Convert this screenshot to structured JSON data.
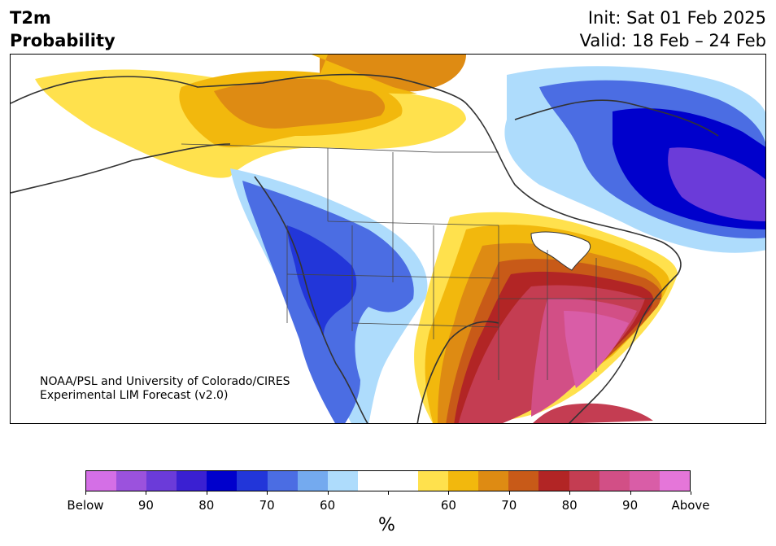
{
  "title": {
    "line1": "T2m",
    "line2": "Probability"
  },
  "header_right": {
    "init": "Init: Sat 01 Feb 2025",
    "valid": "Valid: 18 Feb – 24 Feb"
  },
  "credit": {
    "line1": "NOAA/PSL and University of Colorado/CIRES",
    "line2": "Experimental LIM Forecast (v2.0)"
  },
  "colorbar": {
    "colors": [
      "#d46fe6",
      "#9b52dd",
      "#6b3bd9",
      "#3a20d2",
      "#0000cc",
      "#2236d9",
      "#4b6de3",
      "#74aaef",
      "#aedcfc",
      "#ffffff",
      "#ffffff",
      "#ffe14d",
      "#f2b80d",
      "#de8b13",
      "#c85a18",
      "#b22525",
      "#c43d52",
      "#d24f86",
      "#d95da7",
      "#e576d9"
    ],
    "tick_labels": [
      "Below",
      "90",
      "80",
      "70",
      "60",
      "",
      "60",
      "70",
      "80",
      "90",
      "Above"
    ],
    "unit": "%"
  },
  "legend_colors": {
    "below_strong": "#0000cc",
    "below_light": "#aedcfc",
    "above_light": "#ffe14d",
    "above_strong": "#b22525",
    "above_max": "#d95da7"
  }
}
